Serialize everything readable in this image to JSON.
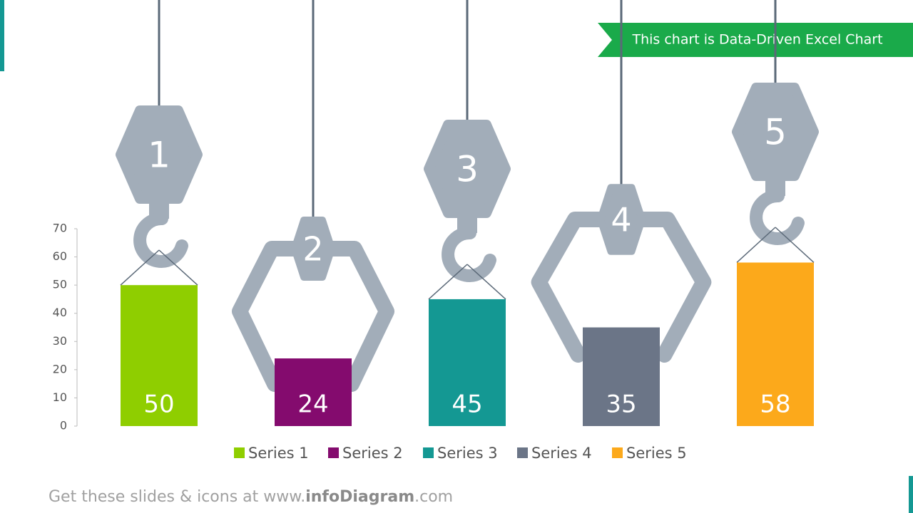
{
  "chart_data": {
    "type": "bar",
    "banner": "This chart is Data-Driven Excel Chart",
    "hooks": [
      "1",
      "2",
      "3",
      "4",
      "5"
    ],
    "series": [
      {
        "name": "Series 1",
        "color": "#8fce00",
        "values": [
          50
        ]
      },
      {
        "name": "Series 2",
        "color": "#840b6e",
        "values": [
          24
        ]
      },
      {
        "name": "Series 3",
        "color": "#149893",
        "values": [
          45
        ]
      },
      {
        "name": "Series 4",
        "color": "#6b7587",
        "values": [
          35
        ]
      },
      {
        "name": "Series 5",
        "color": "#fca91b",
        "values": [
          58
        ]
      }
    ],
    "ylim": [
      0,
      70
    ],
    "yticks": [
      0,
      10,
      20,
      30,
      40,
      50,
      60,
      70
    ],
    "grid": false,
    "footer": [
      "Get these slides & icons at www.",
      "infoDiagram",
      ".com"
    ]
  }
}
